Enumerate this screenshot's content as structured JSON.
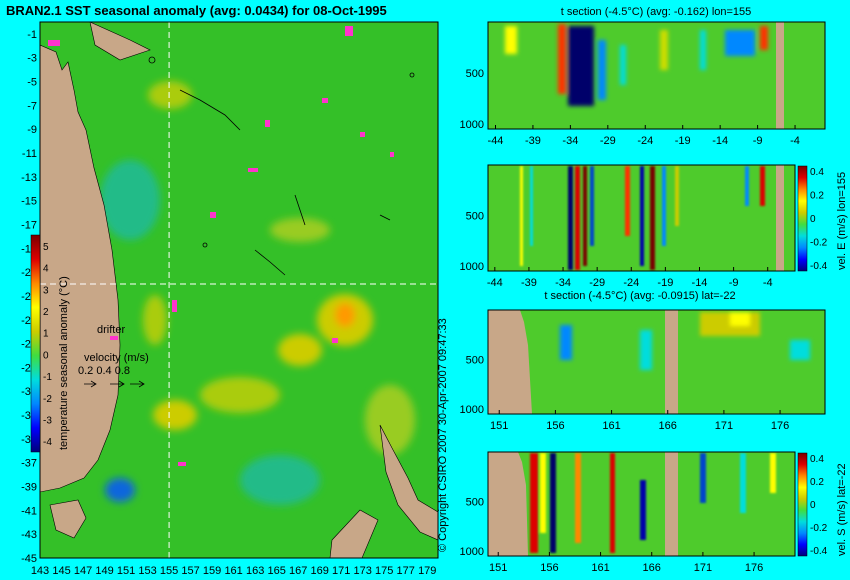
{
  "colors": {
    "page_background": "#00ffff",
    "land": "#c8a788",
    "map_base": "#34c028",
    "section_base": "#4ecb2c",
    "guide_line": "#ffffff",
    "drifter": "#ff33cc",
    "colorbar": [
      "#00007a",
      "#0000ff",
      "#0088ff",
      "#00dddd",
      "#40dd40",
      "#cccc00",
      "#ffff00",
      "#ff8800",
      "#dd0000",
      "#7a0000"
    ]
  },
  "map": {
    "title": "BRAN2.1 SST seasonal anomaly (avg: 0.0434) for 08-Oct-1995",
    "lon_range": [
      143,
      180
    ],
    "lat_range": [
      -45,
      0
    ],
    "y_ticks": [
      "-1",
      "-3",
      "-5",
      "-7",
      "-9",
      "-11",
      "-13",
      "-15",
      "-17",
      "-19",
      "-21",
      "-23",
      "-25",
      "-27",
      "-29",
      "-31",
      "-33",
      "-35",
      "-37",
      "-39",
      "-41",
      "-43",
      "-45"
    ],
    "x_ticks": [
      "143",
      "145",
      "147",
      "149",
      "151",
      "153",
      "155",
      "157",
      "159",
      "161",
      "163",
      "165",
      "167",
      "169",
      "171",
      "173",
      "175",
      "177",
      "179"
    ],
    "section_lon": 155,
    "section_lat": -22,
    "colorbar": {
      "label": "temperature seasonal anomaly (°C)",
      "ticks": [
        "5",
        "4",
        "3",
        "2",
        "1",
        "0",
        "-1",
        "-2",
        "-3",
        "-4"
      ]
    },
    "legend": {
      "drifter": "drifter",
      "velocity_title": "velocity (m/s)",
      "velocity_values": "0.2 0.4 0.8"
    },
    "copyright": "© Copyright CSIRO 2007  30-Apr-2007 09:47:33"
  },
  "sections": [
    {
      "title": "t section (-4.5°C) (avg: -0.162) lon=155",
      "x_ticks": [
        "-44",
        "-39",
        "-34",
        "-29",
        "-24",
        "-19",
        "-14",
        "-9",
        "-4"
      ],
      "y_ticks": [
        "500",
        "1000"
      ],
      "colorbar": null
    },
    {
      "title": "",
      "x_ticks": [
        "-44",
        "-39",
        "-34",
        "-29",
        "-24",
        "-19",
        "-14",
        "-9",
        "-4"
      ],
      "y_ticks": [
        "500",
        "1000"
      ],
      "colorbar": {
        "label": "vel. E (m/s) lon=155",
        "ticks": [
          "0.4",
          "0.2",
          "0",
          "-0.2",
          "-0.4"
        ]
      }
    },
    {
      "title": "t section (-4.5°C) (avg: -0.0915) lat=-22",
      "x_ticks": [
        "151",
        "156",
        "161",
        "166",
        "171",
        "176"
      ],
      "y_ticks": [
        "500",
        "1000"
      ],
      "colorbar": null
    },
    {
      "title": "",
      "x_ticks": [
        "151",
        "156",
        "161",
        "166",
        "171",
        "176"
      ],
      "y_ticks": [
        "500",
        "1000"
      ],
      "colorbar": {
        "label": "vel. S (m/s) lat=-22",
        "ticks": [
          "0.4",
          "0.2",
          "0",
          "-0.2",
          "-0.4"
        ]
      }
    }
  ],
  "chart_data": [
    {
      "type": "heatmap",
      "title": "BRAN2.1 SST seasonal anomaly (avg: 0.0434) for 08-Oct-1995",
      "xlim": [
        143,
        180
      ],
      "ylim": [
        -45,
        0
      ],
      "colorbar_range": [
        -4,
        5
      ],
      "average": 0.0434
    },
    {
      "type": "heatmap",
      "title": "t section (-4.5°C) (avg: -0.162) lon=155",
      "xlim": [
        -45,
        0
      ],
      "ylim": [
        1050,
        0
      ],
      "average": -0.162
    },
    {
      "type": "heatmap",
      "title": "",
      "xlim": [
        -45,
        0
      ],
      "ylim": [
        1050,
        0
      ],
      "colorbar_range": [
        -0.4,
        0.4
      ]
    },
    {
      "type": "heatmap",
      "title": "t section (-4.5°C) (avg: -0.0915) lat=-22",
      "xlim": [
        150,
        180
      ],
      "ylim": [
        1050,
        0
      ],
      "average": -0.0915
    },
    {
      "type": "heatmap",
      "title": "",
      "xlim": [
        150,
        180
      ],
      "ylim": [
        1050,
        0
      ],
      "colorbar_range": [
        -0.4,
        0.4
      ]
    }
  ]
}
